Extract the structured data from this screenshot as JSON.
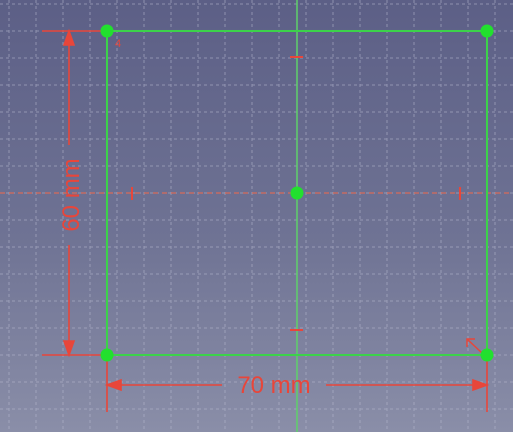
{
  "sketch": {
    "dimension_horizontal": "70 mm",
    "dimension_vertical": "60 mm",
    "constraint_marker": "4"
  },
  "colors": {
    "background_top": "#5c5f86",
    "background_bottom": "#8a8ea8",
    "grid": "#b8bad0",
    "sketch_line": "#3cd24a",
    "sketch_point": "#22e02e",
    "dimension": "#e8463a",
    "axis_horizontal": "#d86a5a",
    "axis_vertical": "#5fd06a"
  },
  "icons": {
    "cursor": "arrow-cursor-icon"
  }
}
